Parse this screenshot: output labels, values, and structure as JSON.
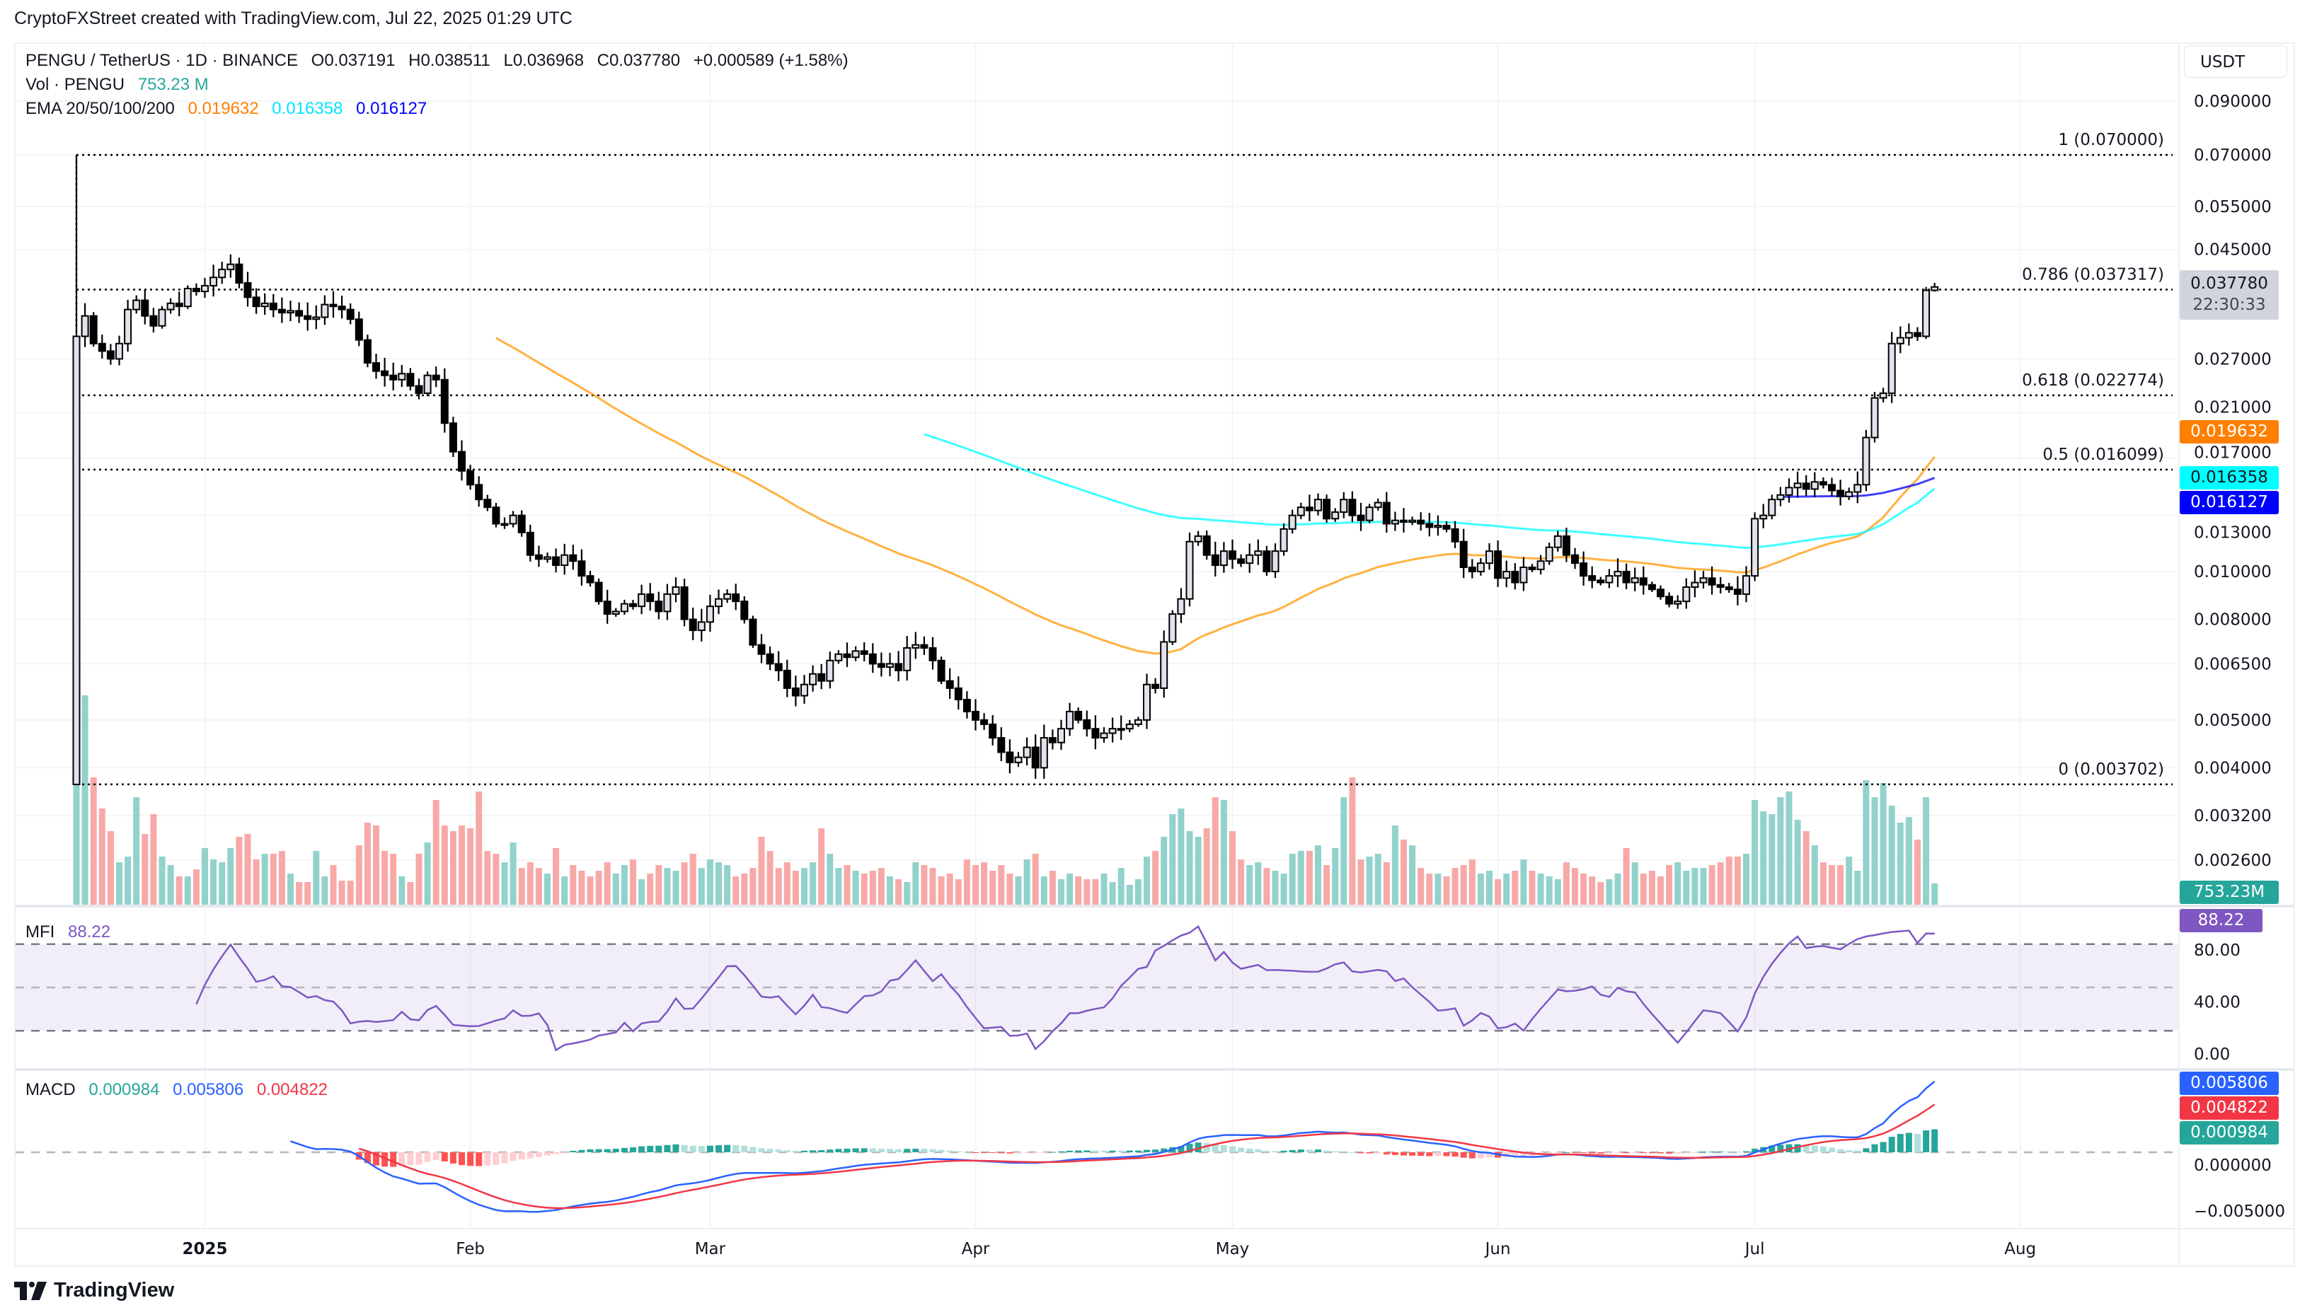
{
  "header": {
    "attribution": "CryptoFXStreet created with TradingView.com, Jul 22, 2025 01:29 UTC"
  },
  "legend": {
    "symbol": "PENGU / TetherUS · 1D · BINANCE",
    "open_label": "O",
    "open": "0.037191",
    "high_label": "H",
    "high": "0.038511",
    "low_label": "L",
    "low": "0.036968",
    "close_label": "C",
    "close": "0.037780",
    "change": "+0.000589 (+1.58%)"
  },
  "vol_legend": {
    "label": "Vol · PENGU",
    "value": "753.23 M"
  },
  "ema_legend": {
    "label": "EMA 20/50/100/200",
    "values": [
      "0.019632",
      "0.016358",
      "0.016127"
    ]
  },
  "price_axis": {
    "currency": "USDT",
    "ticks": [
      "0.090000",
      "0.070000",
      "0.055000",
      "0.045000",
      "0.027000",
      "0.021000",
      "0.017000",
      "0.013000",
      "0.010000",
      "0.008000",
      "0.006500",
      "0.005000",
      "0.004000",
      "0.003200",
      "0.002600"
    ],
    "last_price": "0.037780",
    "countdown": "22:30:33",
    "ema_tags": [
      "0.019632",
      "0.016358",
      "0.016127"
    ],
    "volume_tag": "753.23M"
  },
  "fib_levels": [
    {
      "label": "1 (0.070000)",
      "price": 0.07
    },
    {
      "label": "0.786 (0.037317)",
      "price": 0.037317
    },
    {
      "label": "0.618 (0.022774)",
      "price": 0.022774
    },
    {
      "label": "0.5 (0.016099)",
      "price": 0.016099
    },
    {
      "label": "0 (0.003702)",
      "price": 0.003702
    }
  ],
  "mfi": {
    "label": "MFI",
    "value": "88.22",
    "ticks": [
      "80.00",
      "40.00",
      "0.00"
    ],
    "bands": [
      80,
      50,
      20
    ]
  },
  "macd": {
    "label": "MACD",
    "histogram": "0.000984",
    "macd": "0.005806",
    "signal": "0.004822",
    "ticks": [
      "0.000000",
      "−0.005000"
    ]
  },
  "time_axis": {
    "labels": [
      "2025",
      "Feb",
      "Mar",
      "Apr",
      "May",
      "Jun",
      "Jul",
      "Aug"
    ]
  },
  "brand": {
    "name": "TradingView"
  },
  "colors": {
    "up_candle": "#e0e3eb",
    "down_candle": "#000000",
    "volume_up": "#92d2cc",
    "volume_down": "#f7a9a7",
    "ema50": "#ff9800",
    "ema100": "#00ffff",
    "ema200": "#0000ff",
    "mfi": "#7e57c2",
    "macd": "#2962ff",
    "signal": "#f23645",
    "hist_up": "#26a69a",
    "hist_up_fading": "#b2dfdb",
    "hist_down": "#ff5252",
    "hist_down_fading": "#ffcdd2",
    "last_price_tag": "#d1d4dc"
  },
  "chart_data": {
    "type": "candlestick",
    "title": "PENGU / TetherUS · 1D · BINANCE",
    "scale": "log",
    "ylim": [
      0.0024,
      0.1
    ],
    "x_ticks": [
      "2025",
      "Feb",
      "Mar",
      "Apr",
      "May",
      "Jun",
      "Jul",
      "Aug"
    ],
    "grid": true,
    "first_candle": {
      "open": 0.0037,
      "high": 0.07,
      "low": 0.003702,
      "close": 0.03
    },
    "last_candle": {
      "open": 0.037191,
      "high": 0.038511,
      "low": 0.036968,
      "close": 0.03778
    },
    "close": [
      0.03,
      0.033,
      0.029,
      0.028,
      0.027,
      0.029,
      0.034,
      0.0355,
      0.033,
      0.0315,
      0.034,
      0.035,
      0.0345,
      0.0375,
      0.037,
      0.038,
      0.0395,
      0.041,
      0.042,
      0.0385,
      0.036,
      0.0345,
      0.035,
      0.034,
      0.0335,
      0.0338,
      0.033,
      0.0325,
      0.0328,
      0.0348,
      0.0345,
      0.034,
      0.0325,
      0.0295,
      0.0265,
      0.0255,
      0.025,
      0.0245,
      0.0252,
      0.0238,
      0.023,
      0.025,
      0.0245,
      0.02,
      0.0175,
      0.016,
      0.015,
      0.014,
      0.0135,
      0.0125,
      0.0125,
      0.013,
      0.012,
      0.0108,
      0.0106,
      0.0107,
      0.0103,
      0.0108,
      0.0105,
      0.0098,
      0.0095,
      0.0087,
      0.0082,
      0.0083,
      0.0086,
      0.0085,
      0.009,
      0.0087,
      0.0083,
      0.009,
      0.0093,
      0.008,
      0.0076,
      0.0079,
      0.0085,
      0.0088,
      0.009,
      0.0087,
      0.008,
      0.0071,
      0.0068,
      0.0065,
      0.0063,
      0.0058,
      0.0056,
      0.0059,
      0.0062,
      0.006,
      0.0066,
      0.0068,
      0.0067,
      0.0069,
      0.0068,
      0.0065,
      0.0064,
      0.0065,
      0.0063,
      0.007,
      0.0071,
      0.007,
      0.0066,
      0.006,
      0.0058,
      0.0055,
      0.0052,
      0.005,
      0.0049,
      0.0046,
      0.0043,
      0.0041,
      0.0042,
      0.0044,
      0.004,
      0.0046,
      0.0045,
      0.0048,
      0.0052,
      0.005,
      0.0048,
      0.0046,
      0.0047,
      0.0048,
      0.0048,
      0.0049,
      0.005,
      0.0059,
      0.0058,
      0.0072,
      0.0082,
      0.0088,
      0.0115,
      0.0118,
      0.0108,
      0.0103,
      0.011,
      0.0106,
      0.0104,
      0.0108,
      0.011,
      0.01,
      0.011,
      0.0122,
      0.013,
      0.0135,
      0.0133,
      0.014,
      0.0128,
      0.0132,
      0.014,
      0.013,
      0.0127,
      0.0135,
      0.0138,
      0.0125,
      0.0127,
      0.0126,
      0.0127,
      0.0125,
      0.0123,
      0.0124,
      0.0122,
      0.0115,
      0.0102,
      0.01,
      0.0104,
      0.011,
      0.0097,
      0.01,
      0.0095,
      0.0102,
      0.0101,
      0.0105,
      0.0112,
      0.0118,
      0.0108,
      0.0104,
      0.0098,
      0.0096,
      0.0095,
      0.0098,
      0.01,
      0.0095,
      0.0097,
      0.0094,
      0.0092,
      0.0089,
      0.0086,
      0.0087,
      0.0093,
      0.0095,
      0.0097,
      0.0094,
      0.0093,
      0.0092,
      0.009,
      0.0098,
      0.0128,
      0.013,
      0.014,
      0.0143,
      0.0148,
      0.0151,
      0.0147,
      0.0152,
      0.015,
      0.0146,
      0.0142,
      0.0145,
      0.015,
      0.0187,
      0.0225,
      0.023,
      0.029,
      0.0298,
      0.0305,
      0.03,
      0.037191,
      0.03778
    ],
    "volume_unit": "M",
    "volume": [
      6800,
      7400,
      4500,
      3400,
      2600,
      1500,
      1700,
      3800,
      2500,
      3200,
      1700,
      1400,
      1000,
      1000,
      1250,
      2000,
      1600,
      1500,
      2000,
      2400,
      2500,
      1600,
      1800,
      1800,
      1900,
      1100,
      800,
      800,
      1900,
      1000,
      1400,
      850,
      850,
      2100,
      2900,
      2800,
      1900,
      1800,
      1000,
      800,
      1800,
      2200,
      3700,
      2800,
      2600,
      2800,
      2700,
      4000,
      1900,
      1800,
      1500,
      2200,
      1300,
      1500,
      1300,
      1100,
      2000,
      1000,
      1400,
      1200,
      1000,
      1200,
      1500,
      1100,
      1400,
      1600,
      900,
      1100,
      1400,
      1300,
      1200,
      1500,
      1800,
      1300,
      1600,
      1500,
      1400,
      1000,
      1100,
      1300,
      2400,
      1900,
      1300,
      1500,
      1200,
      1300,
      1500,
      2700,
      1800,
      1300,
      1400,
      1200,
      1100,
      1200,
      1300,
      1000,
      900,
      800,
      1500,
      1400,
      1300,
      1000,
      1100,
      900,
      1600,
      1400,
      1500,
      1200,
      1400,
      1100,
      1000,
      1600,
      1800,
      1000,
      1200,
      900,
      1100,
      1000,
      900,
      900,
      1100,
      800,
      1300,
      700,
      900,
      1700,
      1900,
      2400,
      3200,
      3400,
      2600,
      2400,
      2700,
      3800,
      3700,
      2600,
      1600,
      1400,
      1500,
      1300,
      1200,
      1100,
      1800,
      1900,
      1900,
      2100,
      1400,
      2000,
      3800,
      4500,
      1600,
      1700,
      1800,
      1500,
      2800,
      2300,
      2100,
      1300,
      1100,
      1100,
      1000,
      1300,
      1400,
      1600,
      1100,
      1200,
      900,
      1100,
      1200,
      1600,
      1200,
      1100,
      1000,
      900,
      1500,
      1300,
      1100,
      1000,
      800,
      900,
      1100,
      2000,
      1500,
      1100,
      1200,
      1000,
      1400,
      1500,
      1200,
      1300,
      1300,
      1400,
      1500,
      1700,
      1700,
      1800,
      3700,
      3300,
      3200,
      3800,
      4000,
      3000,
      2600,
      2100,
      1500,
      1400,
      1400,
      1700,
      1200,
      4400,
      3800,
      4300,
      3500,
      2900,
      3100,
      2300,
      3800,
      753.23
    ],
    "ema_periods": [
      50,
      100,
      200
    ],
    "mfi_period": 14,
    "macd_params": [
      12,
      26,
      9
    ]
  }
}
